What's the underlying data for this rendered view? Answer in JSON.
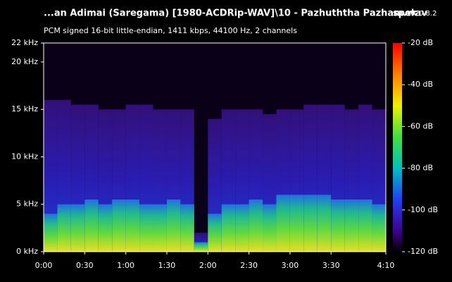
{
  "chart_data": {
    "type": "spectrogram",
    "title": "...an Adimai (Saregama) [1980-ACDRip-WAV]\\10 - Pazhuththa Pazham.wav",
    "app_name": "spek",
    "app_version": "0.8.2",
    "subtitle": "PCM signed 16-bit little-endian, 1411 kbps, 44100 Hz, 2 channels",
    "xlim": [
      0,
      250
    ],
    "xticks": [
      {
        "value": 0,
        "label": "0:00"
      },
      {
        "value": 30,
        "label": "0:30"
      },
      {
        "value": 60,
        "label": "1:00"
      },
      {
        "value": 90,
        "label": "1:30"
      },
      {
        "value": 120,
        "label": "2:00"
      },
      {
        "value": 150,
        "label": "2:30"
      },
      {
        "value": 180,
        "label": "3:00"
      },
      {
        "value": 210,
        "label": "3:30"
      },
      {
        "value": 250,
        "label": "4:10"
      }
    ],
    "ylim": [
      0,
      22
    ],
    "yticks": [
      {
        "value": 0,
        "label": "0 kHz"
      },
      {
        "value": 5,
        "label": "5 kHz"
      },
      {
        "value": 10,
        "label": "10 kHz"
      },
      {
        "value": 15,
        "label": "15 kHz"
      },
      {
        "value": 20,
        "label": "20 kHz"
      },
      {
        "value": 22,
        "label": "22 kHz"
      }
    ],
    "colorbar_lim": [
      -120,
      -20
    ],
    "colorbar_ticks": [
      {
        "value": -20,
        "label": "-20 dB"
      },
      {
        "value": -40,
        "label": "-40 dB"
      },
      {
        "value": -60,
        "label": "-60 dB"
      },
      {
        "value": -80,
        "label": "-80 dB"
      },
      {
        "value": -100,
        "label": "-100 dB"
      },
      {
        "value": -120,
        "label": "-120 dB"
      }
    ],
    "bins": [
      0,
      10,
      20,
      30,
      40,
      50,
      60,
      70,
      80,
      90,
      100,
      110,
      120,
      130,
      140,
      150,
      160,
      170,
      180,
      190,
      200,
      210,
      220,
      230,
      240,
      250
    ],
    "band_top": [
      16,
      16,
      15.5,
      15.5,
      15,
      15,
      15.5,
      15.5,
      15,
      15,
      15,
      2,
      14,
      15,
      15,
      15,
      14.5,
      15,
      15,
      15.5,
      15.5,
      15.5,
      15,
      15.5,
      15
    ],
    "loud_top": [
      4,
      5,
      5,
      5.5,
      5,
      5.5,
      5.5,
      5,
      5,
      5.5,
      5,
      1,
      4,
      5,
      5,
      5.5,
      5,
      6,
      6,
      6,
      6,
      5.5,
      5.5,
      5.5,
      5
    ]
  }
}
